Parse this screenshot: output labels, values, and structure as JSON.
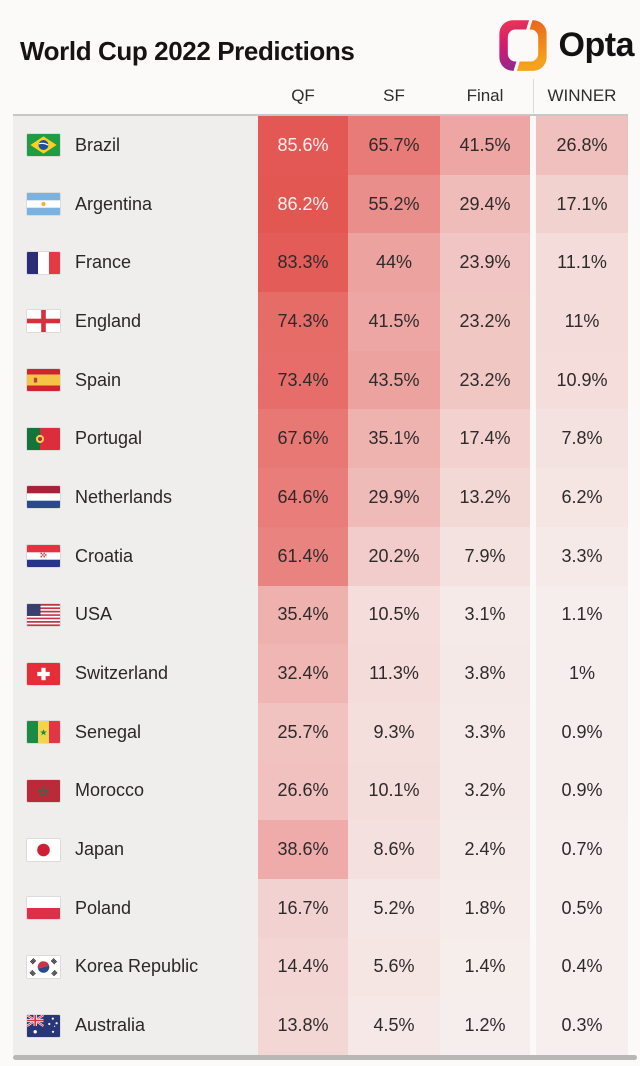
{
  "header": {
    "title": "World Cup 2022 Predictions",
    "logo_text": "Opta"
  },
  "columns": [
    "QF",
    "SF",
    "Final",
    "WINNER"
  ],
  "chart_data": {
    "type": "heatmap",
    "title": "World Cup 2022 Predictions",
    "columns": [
      "QF",
      "SF",
      "Final",
      "WINNER"
    ],
    "unit": "%",
    "rows": [
      {
        "team": "Brazil",
        "flag": "brazil",
        "values": [
          85.6,
          65.7,
          41.5,
          26.8
        ],
        "labels": [
          "85.6%",
          "65.7%",
          "41.5%",
          "26.8%"
        ]
      },
      {
        "team": "Argentina",
        "flag": "argentina",
        "values": [
          86.2,
          55.2,
          29.4,
          17.1
        ],
        "labels": [
          "86.2%",
          "55.2%",
          "29.4%",
          "17.1%"
        ]
      },
      {
        "team": "France",
        "flag": "france",
        "values": [
          83.3,
          44.0,
          23.9,
          11.1
        ],
        "labels": [
          "83.3%",
          "44%",
          "23.9%",
          "11.1%"
        ]
      },
      {
        "team": "England",
        "flag": "england",
        "values": [
          74.3,
          41.5,
          23.2,
          11.0
        ],
        "labels": [
          "74.3%",
          "41.5%",
          "23.2%",
          "11%"
        ]
      },
      {
        "team": "Spain",
        "flag": "spain",
        "values": [
          73.4,
          43.5,
          23.2,
          10.9
        ],
        "labels": [
          "73.4%",
          "43.5%",
          "23.2%",
          "10.9%"
        ]
      },
      {
        "team": "Portugal",
        "flag": "portugal",
        "values": [
          67.6,
          35.1,
          17.4,
          7.8
        ],
        "labels": [
          "67.6%",
          "35.1%",
          "17.4%",
          "7.8%"
        ]
      },
      {
        "team": "Netherlands",
        "flag": "netherlands",
        "values": [
          64.6,
          29.9,
          13.2,
          6.2
        ],
        "labels": [
          "64.6%",
          "29.9%",
          "13.2%",
          "6.2%"
        ]
      },
      {
        "team": "Croatia",
        "flag": "croatia",
        "values": [
          61.4,
          20.2,
          7.9,
          3.3
        ],
        "labels": [
          "61.4%",
          "20.2%",
          "7.9%",
          "3.3%"
        ]
      },
      {
        "team": "USA",
        "flag": "usa",
        "values": [
          35.4,
          10.5,
          3.1,
          1.1
        ],
        "labels": [
          "35.4%",
          "10.5%",
          "3.1%",
          "1.1%"
        ]
      },
      {
        "team": "Switzerland",
        "flag": "switzerland",
        "values": [
          32.4,
          11.3,
          3.8,
          1.0
        ],
        "labels": [
          "32.4%",
          "11.3%",
          "3.8%",
          "1%"
        ]
      },
      {
        "team": "Senegal",
        "flag": "senegal",
        "values": [
          25.7,
          9.3,
          3.3,
          0.9
        ],
        "labels": [
          "25.7%",
          "9.3%",
          "3.3%",
          "0.9%"
        ]
      },
      {
        "team": "Morocco",
        "flag": "morocco",
        "values": [
          26.6,
          10.1,
          3.2,
          0.9
        ],
        "labels": [
          "26.6%",
          "10.1%",
          "3.2%",
          "0.9%"
        ]
      },
      {
        "team": "Japan",
        "flag": "japan",
        "values": [
          38.6,
          8.6,
          2.4,
          0.7
        ],
        "labels": [
          "38.6%",
          "8.6%",
          "2.4%",
          "0.7%"
        ]
      },
      {
        "team": "Poland",
        "flag": "poland",
        "values": [
          16.7,
          5.2,
          1.8,
          0.5
        ],
        "labels": [
          "16.7%",
          "5.2%",
          "1.8%",
          "0.5%"
        ]
      },
      {
        "team": "Korea Republic",
        "flag": "korea",
        "values": [
          14.4,
          5.6,
          1.4,
          0.4
        ],
        "labels": [
          "14.4%",
          "5.6%",
          "1.4%",
          "0.4%"
        ]
      },
      {
        "team": "Australia",
        "flag": "australia",
        "values": [
          13.8,
          4.5,
          1.2,
          0.3
        ],
        "labels": [
          "13.8%",
          "4.5%",
          "1.2%",
          "0.3%"
        ]
      }
    ],
    "colors": {
      "scale_start": "#f6f0ee",
      "scale_end": "#e03e3a",
      "light_text": "#fcf3f1",
      "dark_text": "#2e2a2b",
      "light_text_threshold": 85
    },
    "legend": "none",
    "grid": "off"
  }
}
